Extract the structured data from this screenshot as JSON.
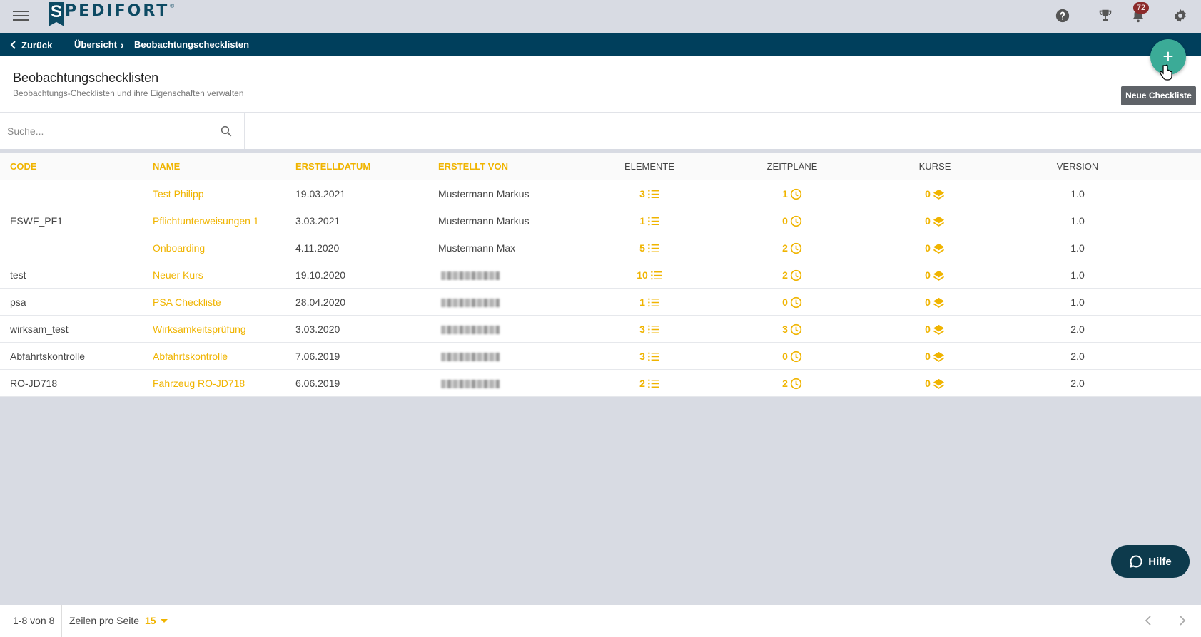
{
  "app": {
    "logo_text": "PEDIFORT",
    "logo_initial": "S",
    "logo_reg": "®",
    "notifications_count": "72"
  },
  "breadcrumb": {
    "back": "Zurück",
    "items": [
      "Übersicht",
      "Beobachtungschecklisten"
    ],
    "separator": "›"
  },
  "header": {
    "title": "Beobachtungschecklisten",
    "subtitle": "Beobachtungs-Checklisten und ihre Eigenschaften verwalten",
    "fab_label": "+",
    "fab_tooltip": "Neue Checkliste"
  },
  "search": {
    "placeholder": "Suche..."
  },
  "table": {
    "columns": {
      "code": "CODE",
      "name": "NAME",
      "erstelldatum": "ERSTELLDATUM",
      "erstellt_von": "ERSTELLT VON",
      "elemente": "ELEMENTE",
      "zeitplaene": "ZEITPLÄNE",
      "kurse": "KURSE",
      "version": "VERSION"
    },
    "rows": [
      {
        "code": "",
        "name": "Test Philipp",
        "date": "19.03.2021",
        "by": "Mustermann Markus",
        "elemente": "3",
        "zeitplaene": "1",
        "kurse": "0",
        "version": "1.0"
      },
      {
        "code": "ESWF_PF1",
        "name": "Pflichtunterweisungen 1",
        "date": "3.03.2021",
        "by": "Mustermann Markus",
        "elemente": "1",
        "zeitplaene": "0",
        "kurse": "0",
        "version": "1.0"
      },
      {
        "code": "",
        "name": "Onboarding",
        "date": "4.11.2020",
        "by": "Mustermann Max",
        "elemente": "5",
        "zeitplaene": "2",
        "kurse": "0",
        "version": "1.0"
      },
      {
        "code": "test",
        "name": "Neuer Kurs",
        "date": "19.10.2020",
        "by": "",
        "elemente": "10",
        "zeitplaene": "2",
        "kurse": "0",
        "version": "1.0"
      },
      {
        "code": "psa",
        "name": "PSA Checkliste",
        "date": "28.04.2020",
        "by": "",
        "elemente": "1",
        "zeitplaene": "0",
        "kurse": "0",
        "version": "1.0"
      },
      {
        "code": "wirksam_test",
        "name": "Wirksamkeitsprüfung",
        "date": "3.03.2020",
        "by": "",
        "elemente": "3",
        "zeitplaene": "3",
        "kurse": "0",
        "version": "2.0"
      },
      {
        "code": "Abfahrtskontrolle",
        "name": "Abfahrtskontrolle",
        "date": "7.06.2019",
        "by": "",
        "elemente": "3",
        "zeitplaene": "0",
        "kurse": "0",
        "version": "2.0"
      },
      {
        "code": "RO-JD718",
        "name": "Fahrzeug RO-JD718",
        "date": "6.06.2019",
        "by": "",
        "elemente": "2",
        "zeitplaene": "2",
        "kurse": "0",
        "version": "2.0"
      }
    ]
  },
  "help_button": {
    "label": "Hilfe"
  },
  "footer": {
    "range": "1-8 von 8",
    "rows_label": "Zeilen pro Seite",
    "rows_value": "15"
  },
  "colors": {
    "accent": "#f0b400",
    "navbar": "#003f5c",
    "fab": "#3bab97",
    "help": "#0d3a4c"
  }
}
